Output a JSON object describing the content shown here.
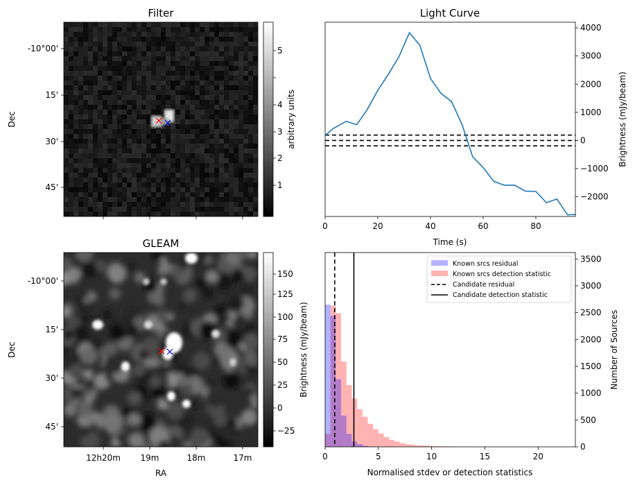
{
  "panels": {
    "filter": {
      "title": "Filter",
      "ylabel": "Dec",
      "cbar_label": "arbitrary units",
      "dec_ticks": [
        "-10°00'",
        "15'",
        "30'",
        "45'"
      ],
      "cbar_ticks": [
        "1",
        "2",
        "3",
        "4",
        "5"
      ]
    },
    "gleam": {
      "title": "GLEAM",
      "ylabel": "Dec",
      "xlabel": "RA",
      "cbar_label": "Brightness (mJy/beam)",
      "dec_ticks": [
        "-10°00'",
        "15'",
        "30'",
        "45'"
      ],
      "ra_ticks": [
        "12h20m",
        "19m",
        "18m",
        "17m"
      ],
      "cbar_ticks": [
        "−25",
        "0",
        "25",
        "50",
        "75",
        "100",
        "125",
        "150"
      ]
    }
  },
  "chart_data": [
    {
      "type": "line",
      "title": "Light Curve",
      "xlabel": "Time (s)",
      "ylabel": "Brightness (mJy/beam)",
      "xlim": [
        0,
        95
      ],
      "ylim": [
        -2700,
        4200
      ],
      "xticks": [
        0,
        20,
        40,
        60,
        80
      ],
      "yticks": [
        -2000,
        -1000,
        0,
        1000,
        2000,
        3000,
        4000
      ],
      "series": [
        {
          "color": "#1f77b4",
          "x": [
            0,
            3,
            8,
            12,
            16,
            20,
            24,
            28,
            32,
            36,
            40,
            44,
            48,
            52,
            56,
            60,
            64,
            68,
            72,
            76,
            80,
            84,
            88,
            92,
            95
          ],
          "y": [
            180,
            420,
            680,
            560,
            1100,
            1780,
            2350,
            2970,
            3830,
            3370,
            2200,
            1670,
            1380,
            560,
            -580,
            -960,
            -1450,
            -1590,
            -1590,
            -1800,
            -1810,
            -2210,
            -2080,
            -2640,
            -2630
          ]
        }
      ],
      "hlines": [
        {
          "y": 190,
          "style": "dashed",
          "color": "#000000"
        },
        {
          "y": 0,
          "style": "dashed",
          "color": "#000000"
        },
        {
          "y": -190,
          "style": "dashed",
          "color": "#000000"
        }
      ]
    },
    {
      "type": "bar",
      "xlabel": "Normalised stdev or detection statistics",
      "ylabel": "Number of Sources",
      "xlim": [
        0,
        23.5
      ],
      "ylim": [
        0,
        3620
      ],
      "xticks": [
        0,
        5,
        10,
        15,
        20
      ],
      "yticks": [
        0,
        500,
        1000,
        1500,
        2000,
        2500,
        3000,
        3500
      ],
      "legend_position": "top-right",
      "bin_width": 0.5,
      "series": [
        {
          "name": "Known srcs residual",
          "color": "#0000ff",
          "x": [
            0,
            0.5,
            1,
            1.5,
            2,
            2.5,
            3,
            3.5,
            4
          ],
          "values": [
            2650,
            2440,
            1260,
            580,
            240,
            100,
            50,
            20,
            5
          ]
        },
        {
          "name": "Known srcs detection statistic",
          "color": "#ff0000",
          "x": [
            0,
            0.5,
            1,
            1.5,
            2,
            2.5,
            3,
            3.5,
            4,
            4.5,
            5,
            5.5,
            6,
            6.5,
            7,
            7.5,
            8,
            8.5,
            9,
            9.5,
            10,
            10.5,
            11,
            11.5,
            12,
            12.5,
            13,
            13.5,
            14,
            14.5,
            15,
            15.5,
            16,
            16.5,
            17,
            17.5,
            18,
            18.5,
            19,
            19.5,
            20,
            20.5,
            21,
            21.5,
            22,
            22.5,
            23
          ],
          "values": [
            240,
            2630,
            2490,
            1590,
            1150,
            900,
            700,
            560,
            430,
            330,
            250,
            180,
            130,
            100,
            70,
            50,
            40,
            30,
            25,
            20,
            15,
            12,
            10,
            8,
            6,
            5,
            5,
            4,
            3,
            3,
            2,
            2,
            2,
            2,
            2,
            2,
            2,
            2,
            2,
            2,
            2,
            2,
            2,
            2,
            2,
            2,
            2
          ]
        }
      ],
      "vlines": [
        {
          "name": "Candidate residual",
          "x": 0.9,
          "style": "dashed",
          "color": "#000000"
        },
        {
          "name": "Candidate detection statistic",
          "x": 2.7,
          "style": "solid",
          "color": "#000000"
        }
      ]
    }
  ]
}
